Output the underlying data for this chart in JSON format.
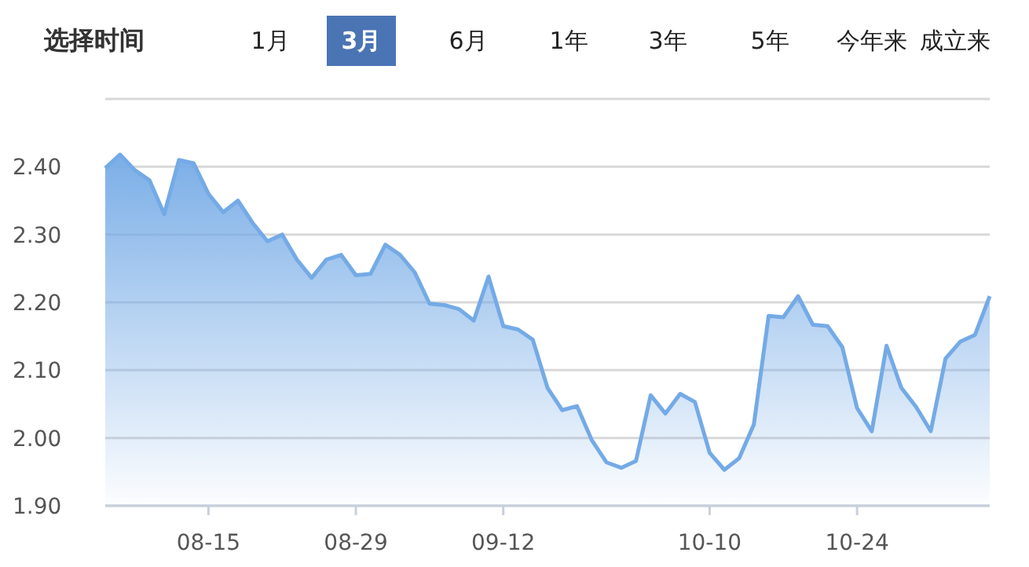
{
  "chart_data": {
    "type": "area",
    "annotations": [
      "选择时间",
      "1月",
      "3月",
      "6月",
      "1年",
      "3年",
      "5年",
      "今年来",
      "成立来"
    ],
    "categories": [
      null,
      null,
      null,
      null,
      null,
      null,
      null,
      "08-15",
      null,
      null,
      null,
      null,
      null,
      null,
      null,
      null,
      null,
      "08-29",
      null,
      null,
      null,
      null,
      null,
      null,
      null,
      null,
      null,
      "09-12",
      null,
      null,
      null,
      null,
      null,
      null,
      null,
      null,
      null,
      null,
      null,
      null,
      null,
      "10-10",
      null,
      null,
      null,
      null,
      null,
      null,
      null,
      null,
      null,
      "10-24",
      null,
      null,
      null,
      null,
      null,
      null,
      null,
      null,
      null
    ],
    "series": [
      {
        "color": "#74aae6",
        "values": [
          2.398,
          2.418,
          2.395,
          2.38,
          2.33,
          2.41,
          2.405,
          2.36,
          2.333,
          2.35,
          2.317,
          2.29,
          2.3,
          2.263,
          2.236,
          2.263,
          2.27,
          2.24,
          2.242,
          2.285,
          2.27,
          2.244,
          2.198,
          2.196,
          2.19,
          2.173,
          2.238,
          2.165,
          2.16,
          2.145,
          2.074,
          2.041,
          2.047,
          1.997,
          1.964,
          1.956,
          1.966,
          2.063,
          2.036,
          2.065,
          2.053,
          1.978,
          1.953,
          1.97,
          2.02,
          2.18,
          2.178,
          2.209,
          2.167,
          2.165,
          2.134,
          2.044,
          2.01,
          2.136,
          2.074,
          2.046,
          2.01,
          2.117,
          2.142,
          2.152,
          2.209
        ]
      }
    ],
    "ylim": [
      1.9,
      2.5
    ],
    "yticks": [
      {
        "value": 1.9,
        "label": "1.90"
      },
      {
        "value": 2.0,
        "label": "2.00"
      },
      {
        "value": 2.1,
        "label": "2.10"
      },
      {
        "value": 2.2,
        "label": "2.20"
      },
      {
        "value": 2.3,
        "label": "2.30"
      },
      {
        "value": 2.4,
        "label": "2.40"
      },
      {
        "value": 2.5,
        "label": null
      }
    ],
    "grid": "y"
  }
}
